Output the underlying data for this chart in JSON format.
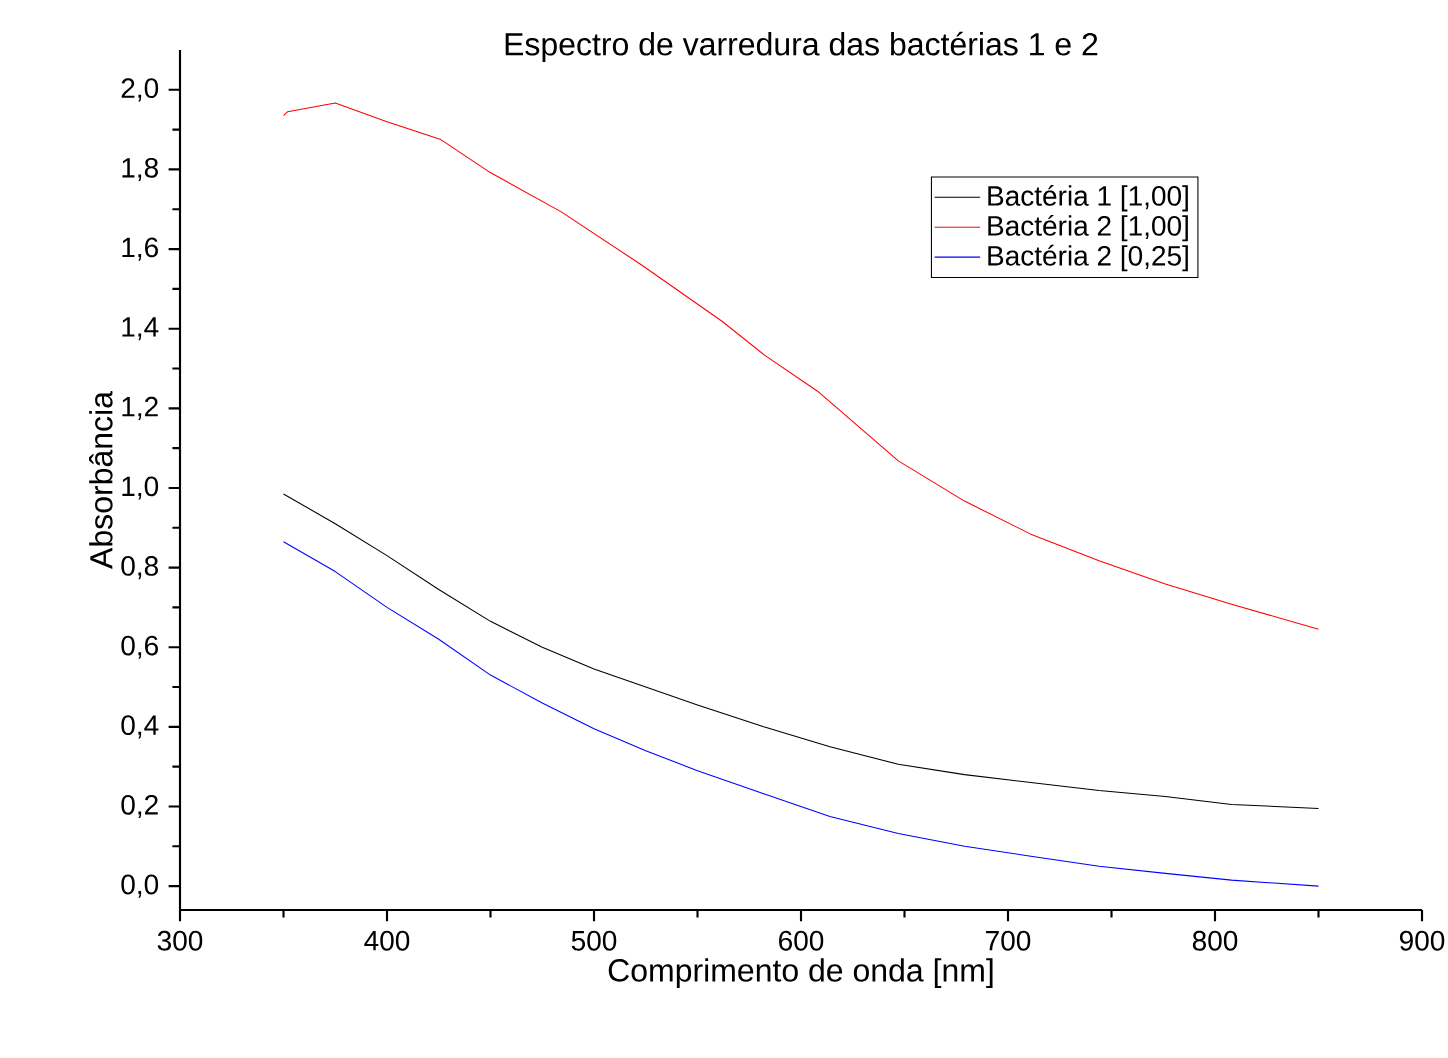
{
  "chart_data": {
    "type": "line",
    "title": "Espectro de varredura das bactérias 1 e 2",
    "xlabel": "Comprimento de onda [nm]",
    "ylabel": "Absorbância",
    "xlim": [
      300,
      900
    ],
    "ylim": [
      -0.06,
      2.1
    ],
    "xticks": [
      300,
      400,
      500,
      600,
      700,
      800,
      900
    ],
    "yticks": [
      {
        "value": 0,
        "label": "0,0"
      },
      {
        "value": 0.2,
        "label": "0,2"
      },
      {
        "value": 0.4,
        "label": "0,4"
      },
      {
        "value": 0.6,
        "label": "0,6"
      },
      {
        "value": 0.8,
        "label": "0,8"
      },
      {
        "value": 1,
        "label": "1,0"
      },
      {
        "value": 1.2,
        "label": "1,2"
      },
      {
        "value": 1.4,
        "label": "1,4"
      },
      {
        "value": 1.6,
        "label": "1,6"
      },
      {
        "value": 1.8,
        "label": "1,8"
      },
      {
        "value": 2,
        "label": "2,0"
      }
    ],
    "legend": "top right",
    "line_style": "solid",
    "series": [
      {
        "name": "Bactéria 1 [1,00]",
        "color": "#000000",
        "x": [
          350,
          375,
          400,
          425,
          450,
          475,
          500,
          525,
          550,
          582,
          614,
          647,
          679,
          711,
          744,
          776,
          808,
          850
        ],
        "values": [
          0.985,
          0.91,
          0.83,
          0.745,
          0.665,
          0.6,
          0.545,
          0.5,
          0.455,
          0.4,
          0.35,
          0.306,
          0.28,
          0.26,
          0.24,
          0.225,
          0.205,
          0.195
        ]
      },
      {
        "name": "Bactéria 2 [1,00]",
        "color": "#ff0000",
        "x": [
          350,
          352,
          375,
          400,
          426,
          449,
          484,
          523,
          562,
          582,
          608,
          647,
          679,
          711,
          744,
          776,
          808,
          850
        ],
        "values": [
          1.935,
          1.945,
          1.967,
          1.92,
          1.875,
          1.795,
          1.694,
          1.56,
          1.418,
          1.335,
          1.243,
          1.068,
          0.967,
          0.884,
          0.817,
          0.759,
          0.708,
          0.645
        ]
      },
      {
        "name": "Bactéria 2 [0,25]",
        "color": "#0000ff",
        "x": [
          350,
          375,
          400,
          425,
          450,
          475,
          500,
          525,
          550,
          582,
          614,
          647,
          679,
          711,
          744,
          776,
          808,
          850
        ],
        "values": [
          0.865,
          0.79,
          0.7,
          0.62,
          0.53,
          0.46,
          0.395,
          0.34,
          0.29,
          0.232,
          0.175,
          0.132,
          0.1,
          0.075,
          0.05,
          0.032,
          0.015,
          0.0
        ]
      }
    ]
  }
}
